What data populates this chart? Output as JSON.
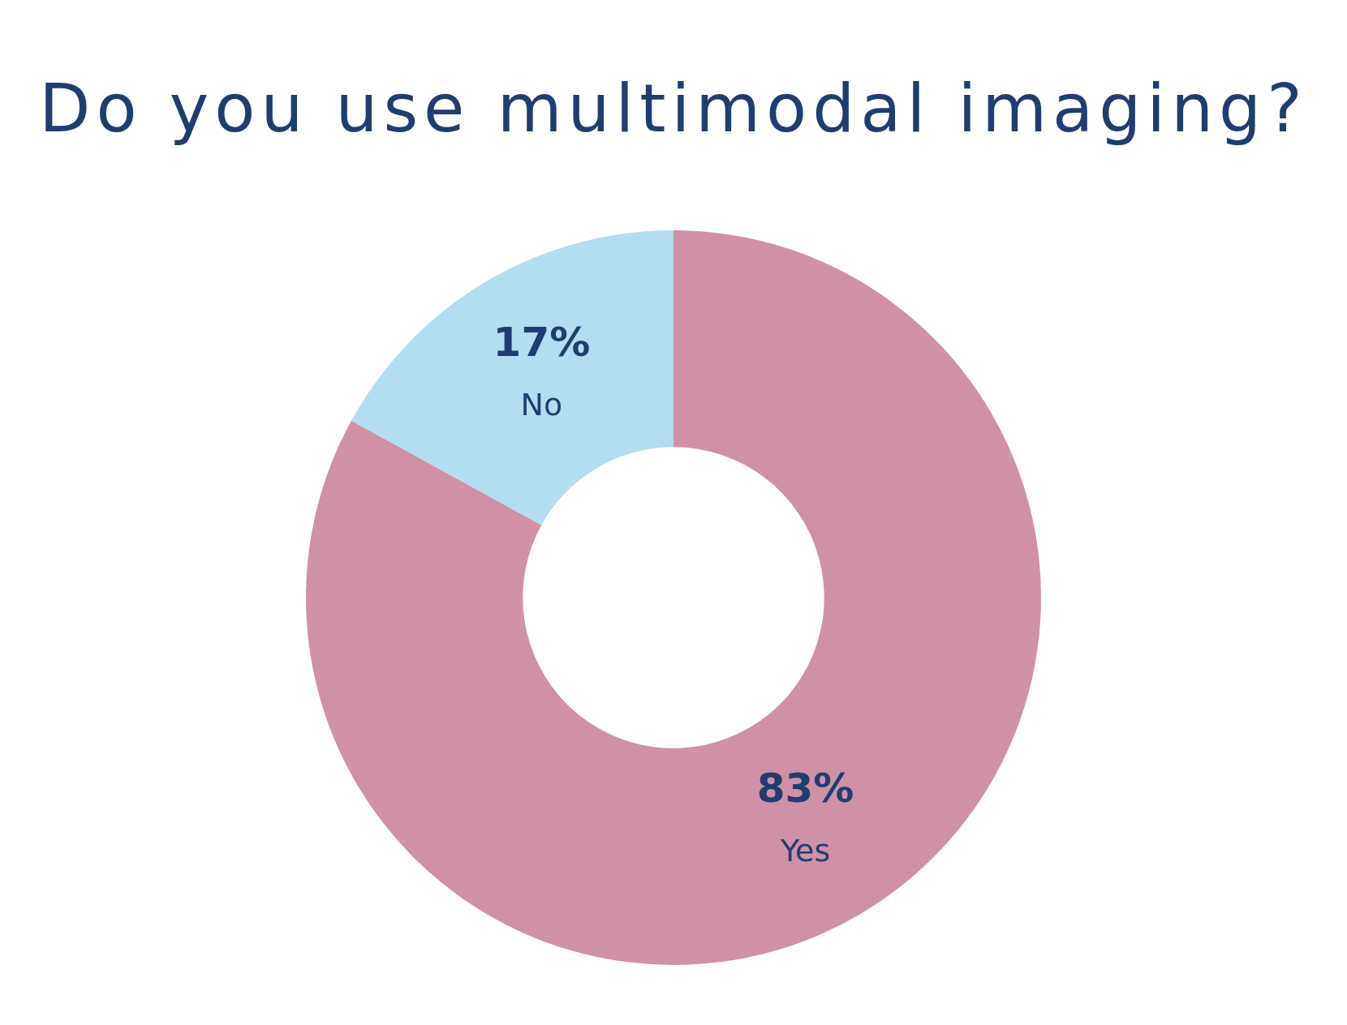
{
  "chart_data": {
    "type": "donut",
    "title": "Do you use multimodal imaging?",
    "categories": [
      "Yes",
      "No"
    ],
    "values": [
      83,
      17
    ],
    "colors": [
      "#cf91a5",
      "#b3ddf0"
    ],
    "value_labels": [
      "83%",
      "17%"
    ]
  }
}
